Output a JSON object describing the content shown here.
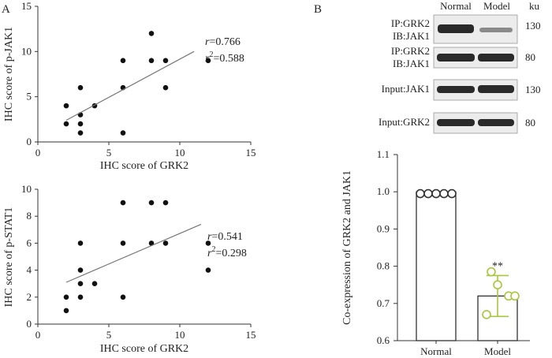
{
  "panels": {
    "a": "A",
    "b": "B"
  },
  "chart_data": [
    {
      "type": "scatter",
      "xlabel": "IHC score of GRK2",
      "ylabel": "IHC score of p-JAK1",
      "xlim": [
        0,
        15
      ],
      "ylim": [
        0,
        15
      ],
      "xticks": [
        "0",
        "5",
        "10",
        "15"
      ],
      "yticks": [
        "0",
        "5",
        "10",
        "15"
      ],
      "points": [
        [
          2,
          2
        ],
        [
          2,
          4
        ],
        [
          3,
          1
        ],
        [
          3,
          2
        ],
        [
          3,
          3
        ],
        [
          3,
          6
        ],
        [
          4,
          4
        ],
        [
          6,
          1
        ],
        [
          6,
          6
        ],
        [
          6,
          9
        ],
        [
          8,
          9
        ],
        [
          8,
          12
        ],
        [
          9,
          6
        ],
        [
          9,
          9
        ],
        [
          12,
          9
        ]
      ],
      "fit": [
        [
          2,
          2.4
        ],
        [
          11,
          10
        ]
      ],
      "r_text": "=0.766",
      "r2_text": "=0.588"
    },
    {
      "type": "scatter",
      "xlabel": "IHC score of GRK2",
      "ylabel": "IHC score of p-STAT1",
      "xlim": [
        0,
        15
      ],
      "ylim": [
        0,
        10
      ],
      "xticks": [
        "0",
        "5",
        "10",
        "15"
      ],
      "yticks": [
        "0",
        "2",
        "4",
        "6",
        "8",
        "10"
      ],
      "points": [
        [
          2,
          1
        ],
        [
          2,
          2
        ],
        [
          3,
          2
        ],
        [
          3,
          3
        ],
        [
          3,
          4
        ],
        [
          3,
          6
        ],
        [
          4,
          3
        ],
        [
          6,
          2
        ],
        [
          6,
          6
        ],
        [
          6,
          9
        ],
        [
          8,
          6
        ],
        [
          8,
          9
        ],
        [
          9,
          6
        ],
        [
          9,
          9
        ],
        [
          12,
          4
        ],
        [
          12,
          6
        ]
      ],
      "fit": [
        [
          2,
          3.1
        ],
        [
          11.5,
          7.4
        ]
      ],
      "r_text": "=0.541",
      "r2_text": "=0.298"
    },
    {
      "type": "bar",
      "categories": [
        "Normal",
        "Model"
      ],
      "values": [
        1.0,
        0.72
      ],
      "errors": [
        0.0,
        0.055
      ],
      "ylabel": "Co-expression of GRK2 and JAK1",
      "ylim": [
        0.6,
        1.1
      ],
      "yticks": [
        "0.6",
        "0.7",
        "0.8",
        "0.9",
        "1.0",
        "1.1"
      ],
      "points": [
        [
          0.995,
          0.995,
          0.995,
          0.995,
          0.995
        ],
        [
          0.75,
          0.72,
          0.67,
          0.72,
          0.785
        ]
      ],
      "significance": "**",
      "point_colors": [
        "#333333",
        "#a8c63a"
      ]
    }
  ],
  "blot": {
    "columns": [
      "Normal",
      "Model"
    ],
    "unit": "ku",
    "rows": [
      {
        "label1": "IP:GRK2",
        "label2": "IB:JAK1",
        "size": "130"
      },
      {
        "label1": "IP:GRK2",
        "label2": "IB:JAK1",
        "size": "80"
      },
      {
        "label1": "Input:JAK1",
        "label2": "",
        "size": "130"
      },
      {
        "label1": "Input:GRK2",
        "label2": "",
        "size": "80"
      }
    ]
  }
}
